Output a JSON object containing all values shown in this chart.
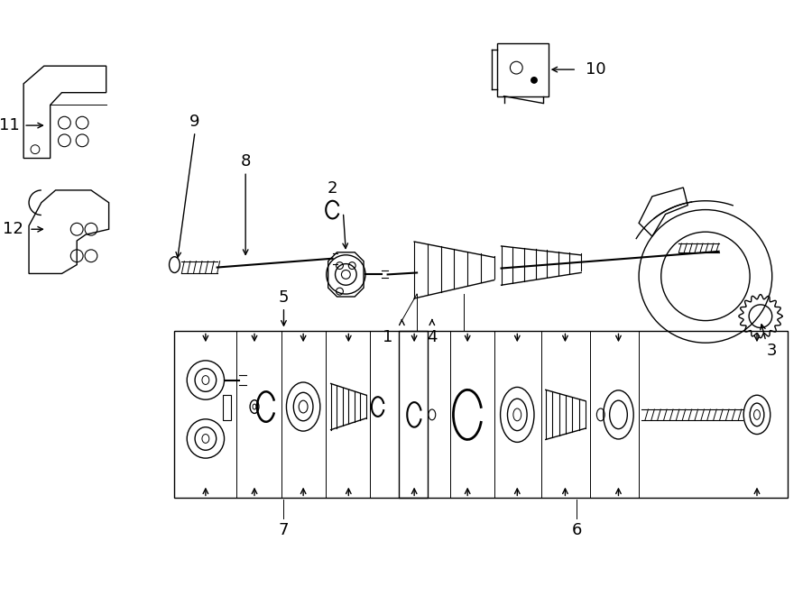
{
  "bg_color": "#ffffff",
  "line_color": "#000000",
  "fig_width": 9.0,
  "fig_height": 6.61,
  "lw": 1.0
}
